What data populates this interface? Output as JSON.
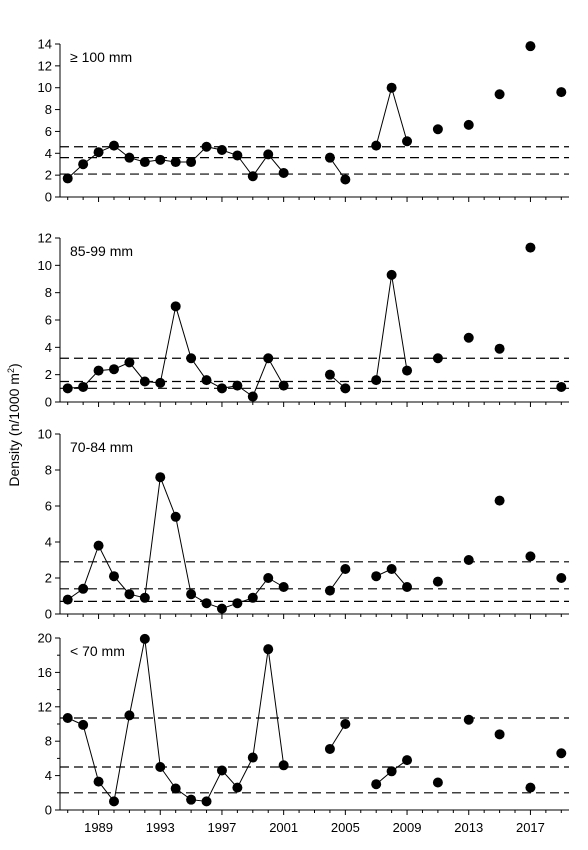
{
  "chart_data": {
    "type": "scatter",
    "ylabel": "Density (n/1000 m²)",
    "ylabel_main": "Density (n/1000 m",
    "ylabel_sup": "2",
    "ylabel_close": ")",
    "x_ticks": [
      1989,
      1993,
      1997,
      2001,
      2005,
      2009,
      2013,
      2017
    ],
    "xlim": [
      1986.5,
      2019.5
    ],
    "panels": [
      {
        "label": "≥ 100 mm",
        "ylim": [
          0,
          14
        ],
        "y_ticks": [
          0,
          2,
          4,
          6,
          8,
          10,
          12,
          14
        ],
        "reference_lines": [
          2.1,
          3.6,
          4.6
        ],
        "connected_segments": [
          [
            [
              1987,
              1.7
            ],
            [
              1988,
              3.0
            ],
            [
              1989,
              4.1
            ],
            [
              1990,
              4.7
            ],
            [
              1991,
              3.6
            ],
            [
              1992,
              3.2
            ],
            [
              1993,
              3.4
            ],
            [
              1994,
              3.2
            ],
            [
              1995,
              3.2
            ],
            [
              1996,
              4.6
            ],
            [
              1997,
              4.3
            ],
            [
              1998,
              3.8
            ],
            [
              1999,
              1.9
            ],
            [
              2000,
              3.9
            ],
            [
              2001,
              2.2
            ]
          ],
          [
            [
              2004,
              3.6
            ],
            [
              2005,
              1.6
            ]
          ],
          [
            [
              2007,
              4.7
            ],
            [
              2008,
              10.0
            ],
            [
              2009,
              5.1
            ]
          ]
        ],
        "isolated_points": [
          [
            2011,
            6.2
          ],
          [
            2013,
            6.6
          ],
          [
            2015,
            9.4
          ],
          [
            2017,
            13.8
          ],
          [
            2019,
            9.6
          ]
        ]
      },
      {
        "label": "85-99 mm",
        "ylim": [
          0,
          12
        ],
        "y_ticks": [
          0,
          2,
          4,
          6,
          8,
          10,
          12
        ],
        "reference_lines": [
          1.0,
          1.5,
          3.2
        ],
        "connected_segments": [
          [
            [
              1987,
              1.0
            ],
            [
              1988,
              1.1
            ],
            [
              1989,
              2.3
            ],
            [
              1990,
              2.4
            ],
            [
              1991,
              2.9
            ],
            [
              1992,
              1.5
            ],
            [
              1993,
              1.4
            ],
            [
              1994,
              7.0
            ],
            [
              1995,
              3.2
            ],
            [
              1996,
              1.6
            ],
            [
              1997,
              1.0
            ],
            [
              1998,
              1.2
            ],
            [
              1999,
              0.4
            ],
            [
              2000,
              3.2
            ],
            [
              2001,
              1.2
            ]
          ],
          [
            [
              2004,
              2.0
            ],
            [
              2005,
              1.0
            ]
          ],
          [
            [
              2007,
              1.6
            ],
            [
              2008,
              9.3
            ],
            [
              2009,
              2.3
            ]
          ]
        ],
        "isolated_points": [
          [
            2011,
            3.2
          ],
          [
            2013,
            4.7
          ],
          [
            2015,
            3.9
          ],
          [
            2017,
            11.3
          ],
          [
            2019,
            1.1
          ]
        ]
      },
      {
        "label": "70-84 mm",
        "ylim": [
          0,
          10
        ],
        "y_ticks": [
          0,
          2,
          4,
          6,
          8,
          10
        ],
        "reference_lines": [
          0.7,
          1.4,
          2.9
        ],
        "connected_segments": [
          [
            [
              1987,
              0.8
            ],
            [
              1988,
              1.4
            ],
            [
              1989,
              3.8
            ],
            [
              1990,
              2.1
            ],
            [
              1991,
              1.1
            ],
            [
              1992,
              0.9
            ],
            [
              1993,
              7.6
            ],
            [
              1994,
              5.4
            ],
            [
              1995,
              1.1
            ],
            [
              1996,
              0.6
            ],
            [
              1997,
              0.3
            ],
            [
              1998,
              0.6
            ],
            [
              1999,
              0.9
            ],
            [
              2000,
              2.0
            ],
            [
              2001,
              1.5
            ]
          ],
          [
            [
              2004,
              1.3
            ],
            [
              2005,
              2.5
            ]
          ],
          [
            [
              2007,
              2.1
            ],
            [
              2008,
              2.5
            ],
            [
              2009,
              1.5
            ]
          ]
        ],
        "isolated_points": [
          [
            2011,
            1.8
          ],
          [
            2013,
            3.0
          ],
          [
            2015,
            6.3
          ],
          [
            2017,
            3.2
          ],
          [
            2019,
            2.0
          ]
        ]
      },
      {
        "label": "< 70 mm",
        "ylim": [
          0,
          20
        ],
        "y_ticks": [
          0,
          4,
          8,
          12,
          16,
          20
        ],
        "y_minor_ticks": [
          2,
          6,
          10,
          14,
          18
        ],
        "reference_lines": [
          2.0,
          5.0,
          10.7
        ],
        "connected_segments": [
          [
            [
              1987,
              10.7
            ],
            [
              1988,
              9.9
            ],
            [
              1989,
              3.3
            ],
            [
              1990,
              1.0
            ],
            [
              1991,
              11.0
            ],
            [
              1992,
              19.9
            ],
            [
              1993,
              5.0
            ],
            [
              1994,
              2.5
            ],
            [
              1995,
              1.2
            ],
            [
              1996,
              1.0
            ],
            [
              1997,
              4.6
            ],
            [
              1998,
              2.6
            ],
            [
              1999,
              6.1
            ],
            [
              2000,
              18.7
            ],
            [
              2001,
              5.2
            ]
          ],
          [
            [
              2004,
              7.1
            ],
            [
              2005,
              10.0
            ]
          ],
          [
            [
              2007,
              3.0
            ],
            [
              2008,
              4.5
            ],
            [
              2009,
              5.8
            ]
          ]
        ],
        "isolated_points": [
          [
            2011,
            3.2
          ],
          [
            2013,
            10.5
          ],
          [
            2015,
            8.8
          ],
          [
            2017,
            2.6
          ],
          [
            2019,
            6.6
          ]
        ]
      }
    ]
  }
}
